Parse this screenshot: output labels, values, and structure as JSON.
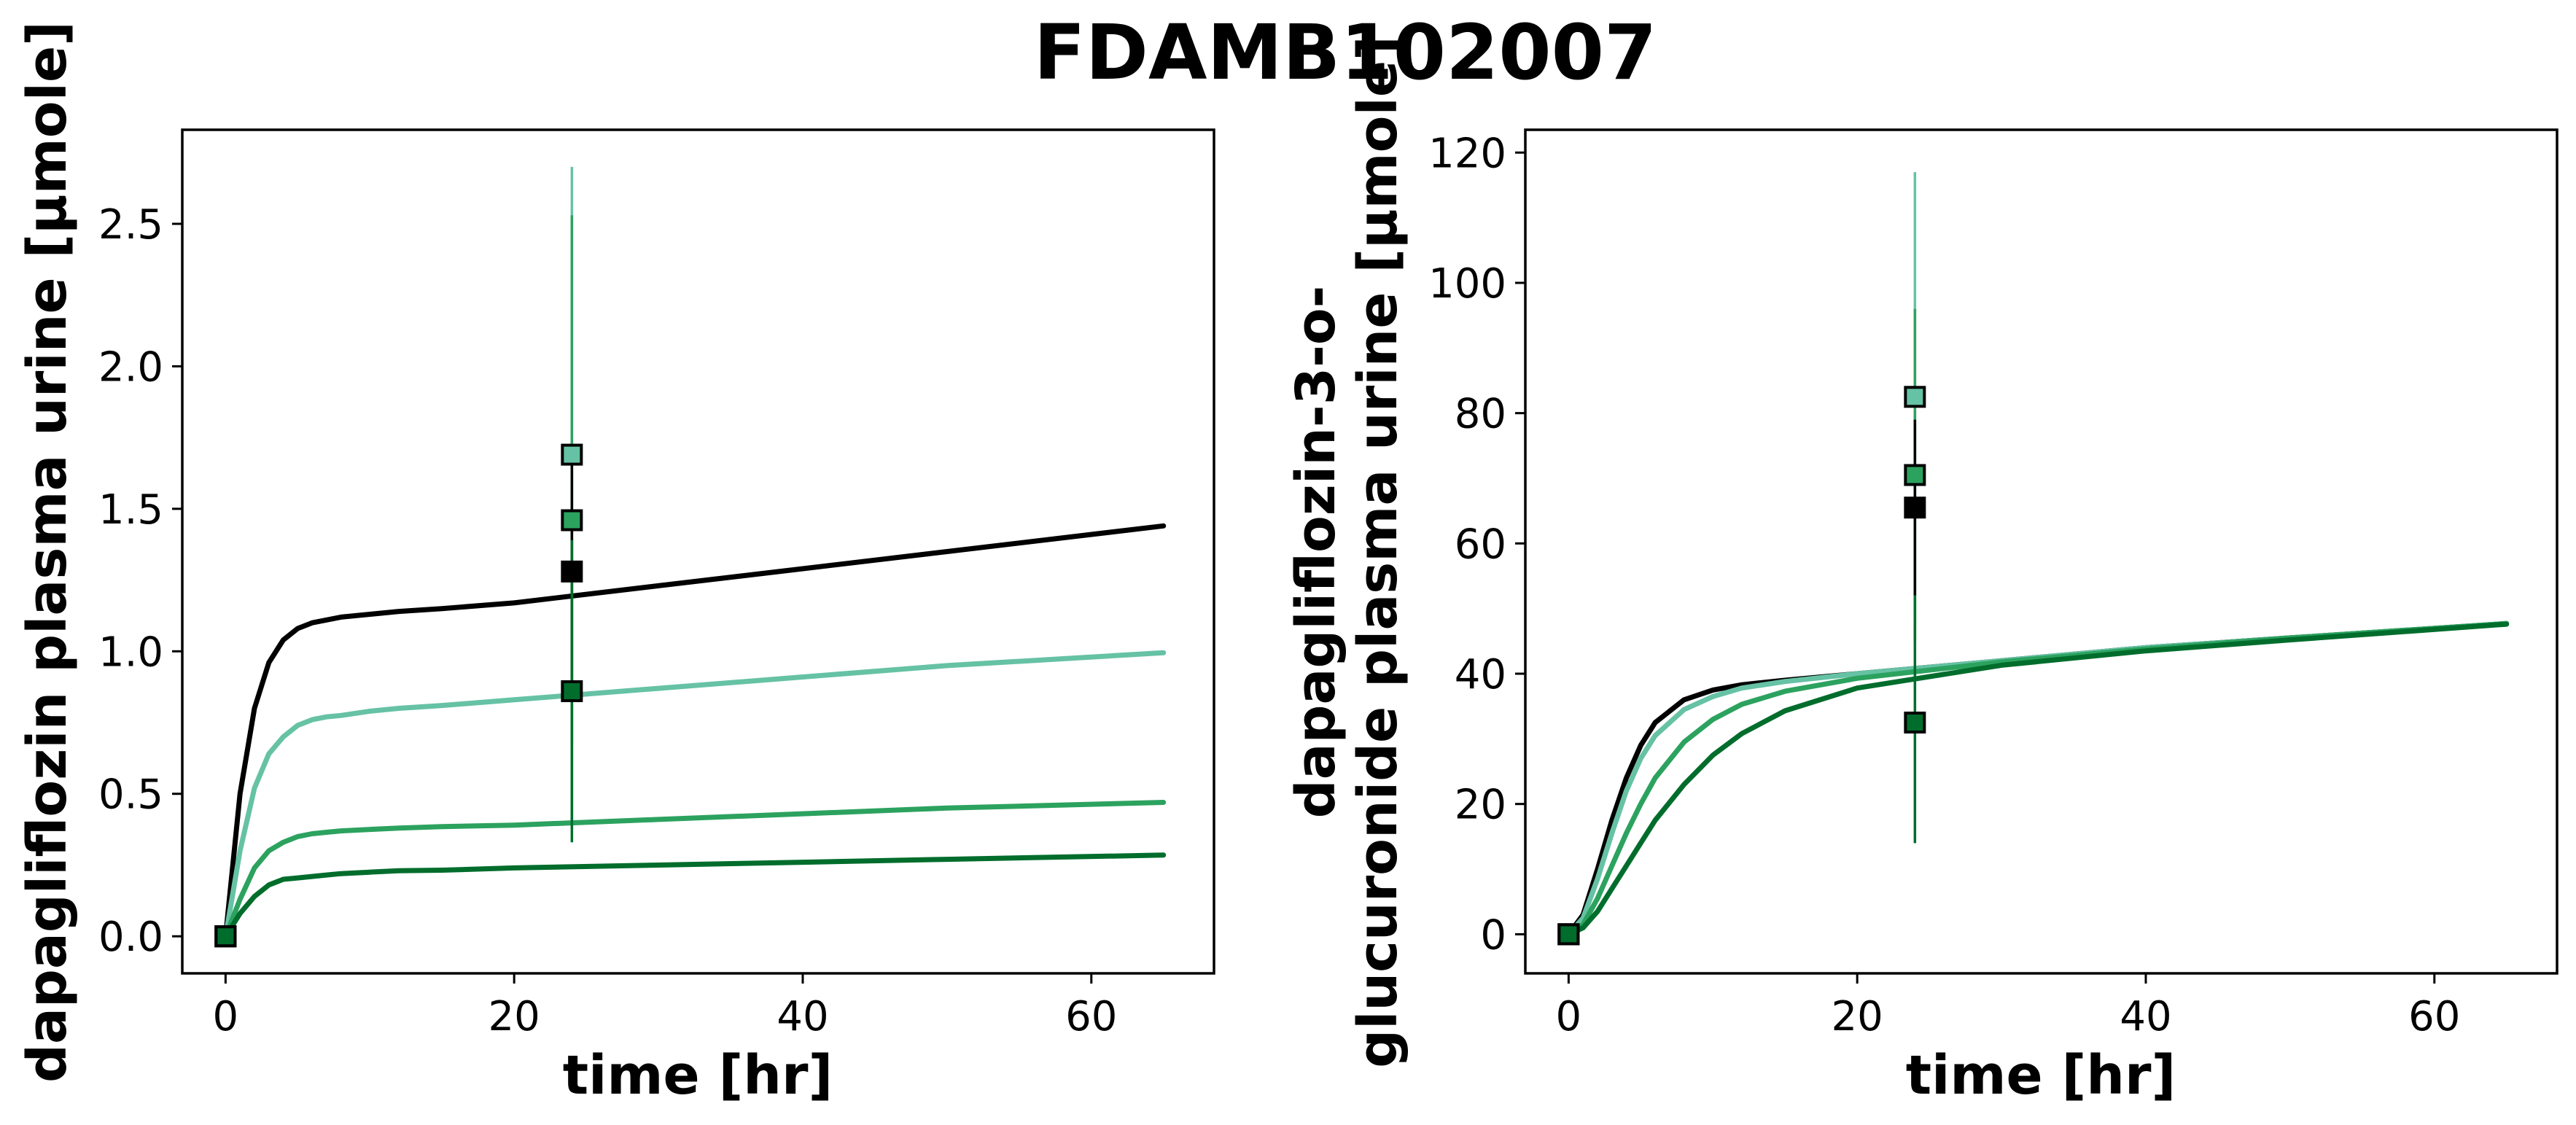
{
  "figure": {
    "title": "FDAMB102007"
  },
  "colors": {
    "black": "#000000",
    "light": "#66c2a4",
    "medium": "#2ca25f",
    "dark": "#006d2c"
  },
  "chart_data": [
    {
      "type": "line",
      "xlabel": "time [hr]",
      "ylabel": "dapagliflozin plasma urine [µmole]",
      "xlim": [
        -3.0,
        68.5
      ],
      "ylim": [
        -0.13,
        2.83
      ],
      "xticks": [
        0,
        20,
        40,
        60
      ],
      "xtick_labels": [
        "0",
        "20",
        "40",
        "60"
      ],
      "yticks": [
        0.0,
        0.5,
        1.0,
        1.5,
        2.0,
        2.5
      ],
      "ytick_labels": [
        "0.0",
        "0.5",
        "1.0",
        "1.5",
        "2.0",
        "2.5"
      ],
      "grid": false,
      "series": [
        {
          "color": "#000000",
          "x": [
            0,
            1,
            2,
            3,
            4,
            5,
            6,
            7,
            8,
            10,
            12,
            15,
            20,
            30,
            40,
            50,
            65
          ],
          "values": [
            0,
            0.5,
            0.8,
            0.96,
            1.04,
            1.08,
            1.1,
            1.11,
            1.12,
            1.13,
            1.14,
            1.15,
            1.17,
            1.23,
            1.29,
            1.35,
            1.44
          ]
        },
        {
          "color": "#66c2a4",
          "x": [
            0,
            1,
            2,
            3,
            4,
            5,
            6,
            7,
            8,
            10,
            12,
            15,
            20,
            30,
            40,
            50,
            65
          ],
          "values": [
            0,
            0.3,
            0.52,
            0.64,
            0.7,
            0.74,
            0.76,
            0.77,
            0.775,
            0.79,
            0.8,
            0.81,
            0.83,
            0.87,
            0.91,
            0.95,
            0.995
          ]
        },
        {
          "color": "#2ca25f",
          "x": [
            0,
            1,
            2,
            3,
            4,
            5,
            6,
            7,
            8,
            10,
            12,
            15,
            20,
            30,
            40,
            50,
            65
          ],
          "values": [
            0,
            0.13,
            0.24,
            0.3,
            0.33,
            0.35,
            0.36,
            0.365,
            0.37,
            0.375,
            0.38,
            0.385,
            0.39,
            0.41,
            0.43,
            0.45,
            0.47
          ]
        },
        {
          "color": "#006d2c",
          "x": [
            0,
            1,
            2,
            3,
            4,
            5,
            6,
            7,
            8,
            10,
            12,
            15,
            20,
            30,
            40,
            50,
            65
          ],
          "values": [
            0,
            0.08,
            0.14,
            0.18,
            0.2,
            0.205,
            0.21,
            0.215,
            0.22,
            0.225,
            0.23,
            0.232,
            0.24,
            0.25,
            0.26,
            0.27,
            0.285
          ]
        }
      ],
      "data_points": [
        {
          "color": "#000000",
          "x": 0,
          "y": 0.0
        },
        {
          "color": "#66c2a4",
          "x": 0,
          "y": 0.0
        },
        {
          "color": "#2ca25f",
          "x": 0,
          "y": 0.0
        },
        {
          "color": "#006d2c",
          "x": 0,
          "y": 0.0
        },
        {
          "color": "#66c2a4",
          "x": 24,
          "y": 1.69,
          "yerr_low": 0.67,
          "yerr_high": 2.7
        },
        {
          "color": "#2ca25f",
          "x": 24,
          "y": 1.46,
          "yerr_low": 0.39,
          "yerr_high": 2.53
        },
        {
          "color": "#000000",
          "x": 24,
          "y": 1.28,
          "yerr_low": 0.85,
          "yerr_high": 1.71
        },
        {
          "color": "#006d2c",
          "x": 24,
          "y": 0.86,
          "yerr_low": 0.33,
          "yerr_high": 1.39
        }
      ]
    },
    {
      "type": "line",
      "xlabel": "time [hr]",
      "ylabel": "dapagliflozin-3-o-glucuronide plasma urine [µmole]",
      "ylabel_lines": [
        "dapagliflozin-3-o-",
        "glucuronide plasma urine [µmole]"
      ],
      "xlim": [
        -3.0,
        68.5
      ],
      "ylim": [
        -6.0,
        123.5
      ],
      "xticks": [
        0,
        20,
        40,
        60
      ],
      "xtick_labels": [
        "0",
        "20",
        "40",
        "60"
      ],
      "yticks": [
        0,
        20,
        40,
        60,
        80,
        100,
        120
      ],
      "ytick_labels": [
        "0",
        "20",
        "40",
        "60",
        "80",
        "100",
        "120"
      ],
      "grid": false,
      "series": [
        {
          "color": "#000000",
          "x": [
            0,
            1,
            2,
            3,
            4,
            5,
            6,
            8,
            10,
            12,
            15,
            20,
            30,
            40,
            50,
            65
          ],
          "values": [
            0,
            3,
            10,
            17.5,
            24,
            29,
            32.5,
            36,
            37.5,
            38.3,
            39,
            40,
            42,
            44,
            45.5,
            47.7
          ]
        },
        {
          "color": "#66c2a4",
          "x": [
            0,
            1,
            2,
            3,
            4,
            5,
            6,
            8,
            10,
            12,
            15,
            20,
            30,
            40,
            50,
            65
          ],
          "values": [
            0,
            2.5,
            8.5,
            15.5,
            22,
            27,
            30.5,
            34.5,
            36.5,
            37.8,
            38.8,
            40,
            42,
            44,
            45.5,
            47.7
          ]
        },
        {
          "color": "#2ca25f",
          "x": [
            0,
            1,
            2,
            3,
            4,
            5,
            6,
            8,
            10,
            12,
            15,
            20,
            30,
            40,
            50,
            65
          ],
          "values": [
            0,
            1.5,
            5.5,
            10.5,
            15.5,
            20,
            24,
            29.5,
            33,
            35.3,
            37.3,
            39.3,
            41.8,
            43.8,
            45.5,
            47.7
          ]
        },
        {
          "color": "#006d2c",
          "x": [
            0,
            1,
            2,
            3,
            4,
            5,
            6,
            8,
            10,
            12,
            15,
            20,
            30,
            40,
            50,
            65
          ],
          "values": [
            0,
            1,
            3.5,
            7,
            10.5,
            14,
            17.5,
            23,
            27.5,
            30.8,
            34.3,
            37.8,
            41.3,
            43.5,
            45.2,
            47.6
          ]
        }
      ],
      "data_points": [
        {
          "color": "#000000",
          "x": 0,
          "y": 0
        },
        {
          "color": "#66c2a4",
          "x": 0,
          "y": 0
        },
        {
          "color": "#2ca25f",
          "x": 0,
          "y": 0
        },
        {
          "color": "#006d2c",
          "x": 0,
          "y": 0
        },
        {
          "color": "#66c2a4",
          "x": 24,
          "y": 82.5,
          "yerr_low": 48,
          "yerr_high": 117
        },
        {
          "color": "#2ca25f",
          "x": 24,
          "y": 70.5,
          "yerr_low": 45,
          "yerr_high": 96
        },
        {
          "color": "#000000",
          "x": 24,
          "y": 65.5,
          "yerr_low": 52,
          "yerr_high": 79
        },
        {
          "color": "#006d2c",
          "x": 24,
          "y": 32.5,
          "yerr_low": 14,
          "yerr_high": 52
        }
      ]
    }
  ]
}
